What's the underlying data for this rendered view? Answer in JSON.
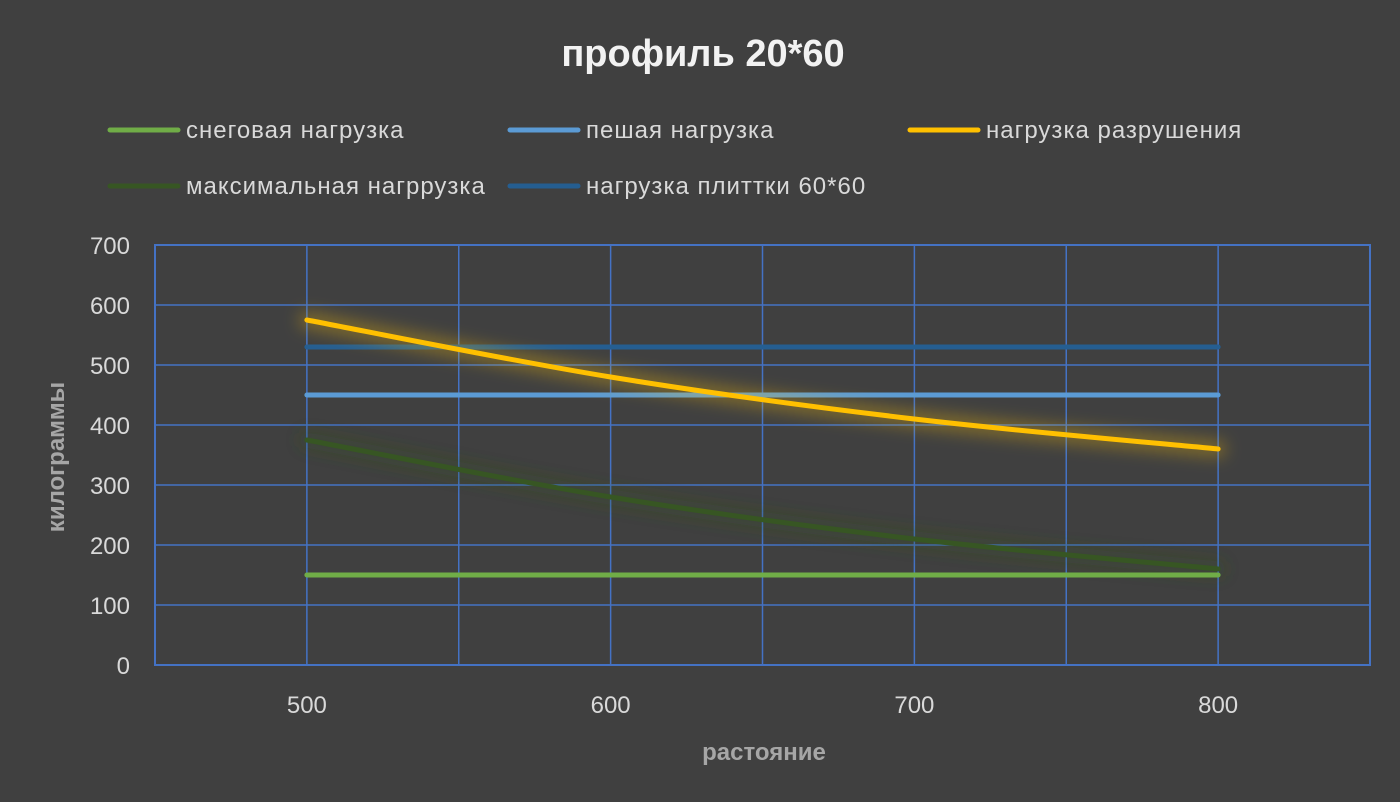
{
  "chart_data": {
    "type": "line",
    "title": "профиль 20*60",
    "xlabel": "растояние",
    "ylabel": "килограммы",
    "x": [
      500,
      600,
      700,
      800
    ],
    "xlim": [
      450,
      850
    ],
    "ylim": [
      0,
      700
    ],
    "y_ticks": [
      0,
      100,
      200,
      300,
      400,
      500,
      600,
      700
    ],
    "x_ticks": [
      500,
      600,
      700,
      800
    ],
    "grid": true,
    "legend_position": "top",
    "series": [
      {
        "name": "снеговая нагрузка",
        "color": "#70ad47",
        "values": [
          150,
          150,
          150,
          150
        ]
      },
      {
        "name": "пешая нагрузка",
        "color": "#5b9bd5",
        "values": [
          450,
          450,
          450,
          450
        ]
      },
      {
        "name": "нагрузка разрушения",
        "color": "#ffc000",
        "values": [
          575,
          480,
          410,
          360
        ]
      },
      {
        "name": "максимальная нагррузка",
        "color": "#375623",
        "values": [
          375,
          280,
          210,
          160
        ]
      },
      {
        "name": "нагрузка плиттки 60*60",
        "color": "#255e91",
        "values": [
          530,
          530,
          530,
          530
        ]
      }
    ]
  }
}
